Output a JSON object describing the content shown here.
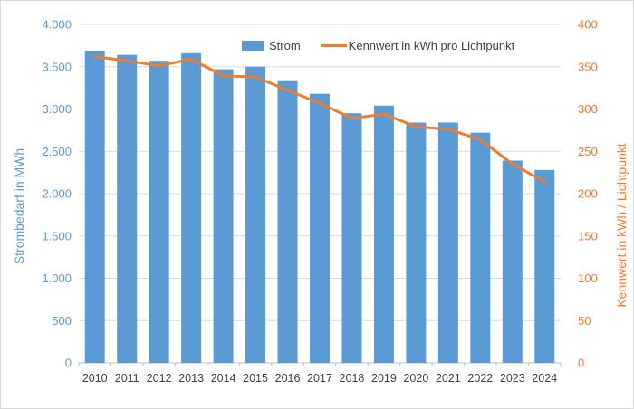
{
  "chart_data": {
    "type": "bar",
    "subtype": "combo-bar-line",
    "categories": [
      "2010",
      "2011",
      "2012",
      "2013",
      "2014",
      "2015",
      "2016",
      "2017",
      "2018",
      "2019",
      "2020",
      "2021",
      "2022",
      "2023",
      "2024"
    ],
    "series": [
      {
        "name": "Strom",
        "type": "bar",
        "axis": "left",
        "color": "#5B9BD5",
        "values": [
          3690,
          3640,
          3570,
          3660,
          3470,
          3500,
          3340,
          3180,
          2950,
          3040,
          2840,
          2840,
          2720,
          2390,
          2280
        ]
      },
      {
        "name": "Kennwert in kWh pro Lichtpunkt",
        "type": "line",
        "axis": "right",
        "color": "#ED7D31",
        "values": [
          362,
          357,
          351,
          359,
          339,
          338,
          322,
          307,
          289,
          294,
          279,
          276,
          264,
          235,
          214
        ]
      }
    ],
    "title": "",
    "left_axis": {
      "title": "Strombedarf in MWh",
      "min": 0,
      "max": 4000,
      "step": 500,
      "tick_labels": [
        "0",
        "500",
        "1.000",
        "1.500",
        "2.000",
        "2.500",
        "3.000",
        "3.500",
        "4.000"
      ],
      "text_color": "#5B9BD5"
    },
    "right_axis": {
      "title": "Kennwert in kWh / Lichtpunkt",
      "min": 0,
      "max": 400,
      "step": 50,
      "tick_labels": [
        "0",
        "50",
        "100",
        "150",
        "200",
        "250",
        "300",
        "350",
        "400"
      ],
      "text_color": "#ED7D31"
    },
    "legend": {
      "position": "top",
      "items": [
        {
          "label": "Strom",
          "marker": "rect",
          "color": "#5B9BD5"
        },
        {
          "label": "Kennwert in kWh pro Lichtpunkt",
          "marker": "line",
          "color": "#ED7D31"
        }
      ]
    },
    "grid": true,
    "gridline_color": "#D9D9D9",
    "axis_line_color": "#BFBFBF",
    "category_text_color": "#404040",
    "legend_text_color": "#404040"
  }
}
